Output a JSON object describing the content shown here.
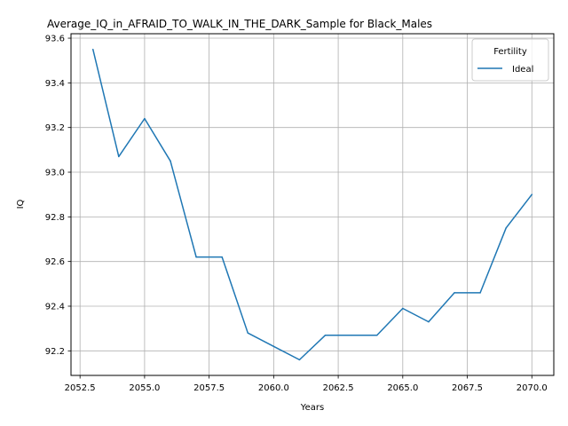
{
  "chart_data": {
    "type": "line",
    "title": "Average_IQ_in_AFRAID_TO_WALK_IN_THE_DARK_Sample for Black_Males",
    "xlabel": "Years",
    "ylabel": "IQ",
    "xlim": [
      2052.15,
      2070.85
    ],
    "ylim": [
      92.09,
      93.62
    ],
    "x_ticks": [
      2052.5,
      2055.0,
      2057.5,
      2060.0,
      2062.5,
      2065.0,
      2067.5,
      2070.0
    ],
    "x_tick_labels": [
      "2052.5",
      "2055.0",
      "2057.5",
      "2060.0",
      "2062.5",
      "2065.0",
      "2067.5",
      "2070.0"
    ],
    "y_ticks": [
      92.2,
      92.4,
      92.6,
      92.8,
      93.0,
      93.2,
      93.4,
      93.6
    ],
    "y_tick_labels": [
      "92.2",
      "92.4",
      "92.6",
      "92.8",
      "93.0",
      "93.2",
      "93.4",
      "93.6"
    ],
    "grid": true,
    "legend": {
      "title": "Fertility",
      "placement": "top-right"
    },
    "x": [
      2053,
      2054,
      2055,
      2056,
      2057,
      2058,
      2059,
      2060,
      2061,
      2062,
      2063,
      2064,
      2065,
      2066,
      2067,
      2068,
      2069,
      2070
    ],
    "series": [
      {
        "name": "Ideal",
        "color": "#1f77b4",
        "values": [
          93.55,
          93.07,
          93.24,
          93.05,
          92.62,
          92.62,
          92.28,
          92.22,
          92.16,
          92.27,
          92.27,
          92.27,
          92.39,
          92.33,
          92.46,
          92.46,
          92.75,
          92.9
        ]
      }
    ]
  }
}
